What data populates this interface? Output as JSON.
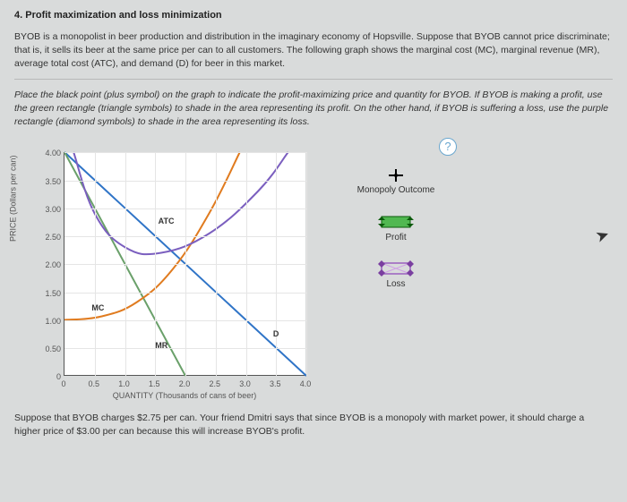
{
  "heading": "4. Profit maximization and loss minimization",
  "intro": "BYOB is a monopolist in beer production and distribution in the imaginary economy of Hopsville. Suppose that BYOB cannot price discriminate; that is, it sells its beer at the same price per can to all customers. The following graph shows the marginal cost (MC), marginal revenue (MR), average total cost (ATC), and demand (D) for beer in this market.",
  "instruction": "Place the black point (plus symbol) on the graph to indicate the profit-maximizing price and quantity for BYOB. If BYOB is making a profit, use the green rectangle (triangle symbols) to shade in the area representing its profit. On the other hand, if BYOB is suffering a loss, use the purple rectangle (diamond symbols) to shade in the area representing its loss.",
  "help_glyph": "?",
  "chart": {
    "ylabel": "PRICE (Dollars per can)",
    "xlabel": "QUANTITY (Thousands of cans of beer)",
    "xlim": [
      0,
      4.0
    ],
    "ylim": [
      0,
      4.0
    ],
    "xticks": [
      "0",
      "0.5",
      "1.0",
      "1.5",
      "2.0",
      "2.5",
      "3.0",
      "3.5",
      "4.0"
    ],
    "yticks": [
      "0",
      "0.50",
      "1.00",
      "1.50",
      "2.00",
      "2.50",
      "3.00",
      "3.50",
      "4.00"
    ],
    "grid_color": "#e5e5e5",
    "background_color": "#ffffff",
    "axis_color": "#555555",
    "curves": {
      "D": {
        "color": "#2f74c7",
        "label": "D",
        "points": [
          [
            0,
            4.0
          ],
          [
            4.0,
            0
          ]
        ]
      },
      "MR": {
        "color": "#6aa06a",
        "label": "MR",
        "points": [
          [
            0,
            4.0
          ],
          [
            2.0,
            0
          ]
        ]
      },
      "MC": {
        "color": "#e07b1f",
        "label": "MC",
        "points": [
          [
            0,
            1.0
          ],
          [
            0.6,
            1.06
          ],
          [
            1.2,
            1.32
          ],
          [
            1.8,
            1.92
          ],
          [
            2.4,
            2.92
          ],
          [
            2.9,
            4.0
          ]
        ]
      },
      "ATC": {
        "color": "#7b5fbf",
        "label": "ATC",
        "points": [
          [
            0.15,
            4.0
          ],
          [
            0.5,
            2.9
          ],
          [
            1.0,
            2.3
          ],
          [
            1.6,
            2.2
          ],
          [
            2.4,
            2.55
          ],
          [
            3.2,
            3.3
          ],
          [
            3.7,
            4.0
          ]
        ]
      }
    },
    "curve_label_pos": {
      "ATC": {
        "q": 1.55,
        "p": 2.78
      },
      "MC": {
        "q": 0.45,
        "p": 1.22
      },
      "MR": {
        "q": 1.5,
        "p": 0.55
      },
      "D": {
        "q": 3.45,
        "p": 0.75
      }
    }
  },
  "legend": {
    "monopoly": {
      "label": "Monopoly Outcome",
      "color": "#000000"
    },
    "profit": {
      "label": "Profit",
      "color": "#2e8b2e"
    },
    "loss": {
      "label": "Loss",
      "color": "#a060c0"
    }
  },
  "footer": "Suppose that BYOB charges $2.75 per can. Your friend Dmitri says that since BYOB is a monopoly with market power, it should charge a higher price of $3.00 per can because this will increase BYOB's profit."
}
